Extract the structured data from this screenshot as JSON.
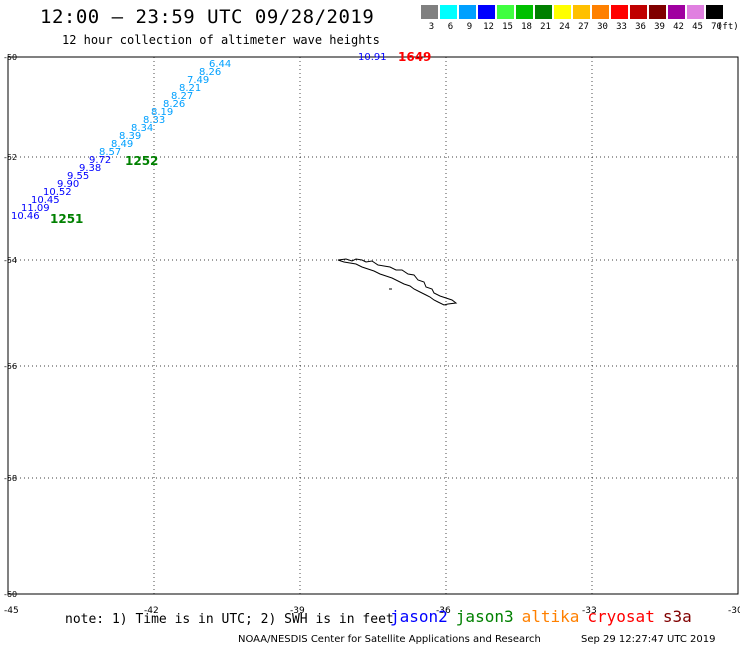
{
  "title": "12:00 – 23:59 UTC 09/28/2019",
  "subtitle": "12 hour collection of altimeter wave heights",
  "color_scale": {
    "labels": [
      "3",
      "6",
      "9",
      "12",
      "15",
      "18",
      "21",
      "24",
      "27",
      "30",
      "33",
      "36",
      "39",
      "42",
      "45",
      "70"
    ],
    "unit": "(ft)",
    "colors": [
      "#808080",
      "#00ffff",
      "#00a0ff",
      "#0000ff",
      "#40ff40",
      "#00c000",
      "#008000",
      "#ffff00",
      "#ffc000",
      "#ff8000",
      "#ff0000",
      "#c00000",
      "#800000",
      "#a000a0",
      "#e080e0",
      "#000000"
    ]
  },
  "map": {
    "lon_ticks": [
      "-45",
      "-42",
      "-39",
      "-36",
      "-33",
      "-30"
    ],
    "lat_ticks": [
      "-50",
      "-52",
      "-54",
      "-56",
      "-58",
      "-60"
    ],
    "grid": true
  },
  "tracks": [
    {
      "label": "1252",
      "color": "#008000",
      "values": [
        {
          "text": "6.44",
          "color": "#00a0ff"
        },
        {
          "text": "8.26",
          "color": "#00a0ff"
        },
        {
          "text": "7.49",
          "color": "#00a0ff"
        },
        {
          "text": "8.21",
          "color": "#00a0ff"
        },
        {
          "text": "8.27",
          "color": "#00a0ff"
        },
        {
          "text": "8.26",
          "color": "#00a0ff"
        },
        {
          "text": "8.19",
          "color": "#00a0ff"
        },
        {
          "text": "8.33",
          "color": "#00a0ff"
        },
        {
          "text": "8.34",
          "color": "#00a0ff"
        },
        {
          "text": "8.39",
          "color": "#00a0ff"
        },
        {
          "text": "8.49",
          "color": "#00a0ff"
        },
        {
          "text": "8.57",
          "color": "#00a0ff"
        },
        {
          "text": "9.72",
          "color": "#0000ff"
        }
      ]
    },
    {
      "label": "1251",
      "color": "#008000",
      "values": [
        {
          "text": "9.38",
          "color": "#0000ff"
        },
        {
          "text": "9.55",
          "color": "#0000ff"
        },
        {
          "text": "9.90",
          "color": "#0000ff"
        },
        {
          "text": "10.52",
          "color": "#0000ff"
        },
        {
          "text": "10.45",
          "color": "#0000ff"
        },
        {
          "text": "11.09",
          "color": "#0000ff"
        },
        {
          "text": "10.46",
          "color": "#0000ff"
        }
      ]
    },
    {
      "label": "1649",
      "color": "#ff0000",
      "values": [
        {
          "text": "10.91",
          "color": "#0000ff"
        }
      ]
    }
  ],
  "note": "note: 1) Time is in UTC; 2) SWH is in feet",
  "satellites": [
    {
      "name": "jason2",
      "color": "#0000ff"
    },
    {
      "name": "jason3",
      "color": "#008000"
    },
    {
      "name": "altika",
      "color": "#ff8000"
    },
    {
      "name": "cryosat",
      "color": "#ff0000"
    },
    {
      "name": "s3a",
      "color": "#800000"
    }
  ],
  "credit": "NOAA/NESDIS Center for Satellite Applications and Research",
  "timestamp": "Sep 29 12:27:47 UTC 2019"
}
